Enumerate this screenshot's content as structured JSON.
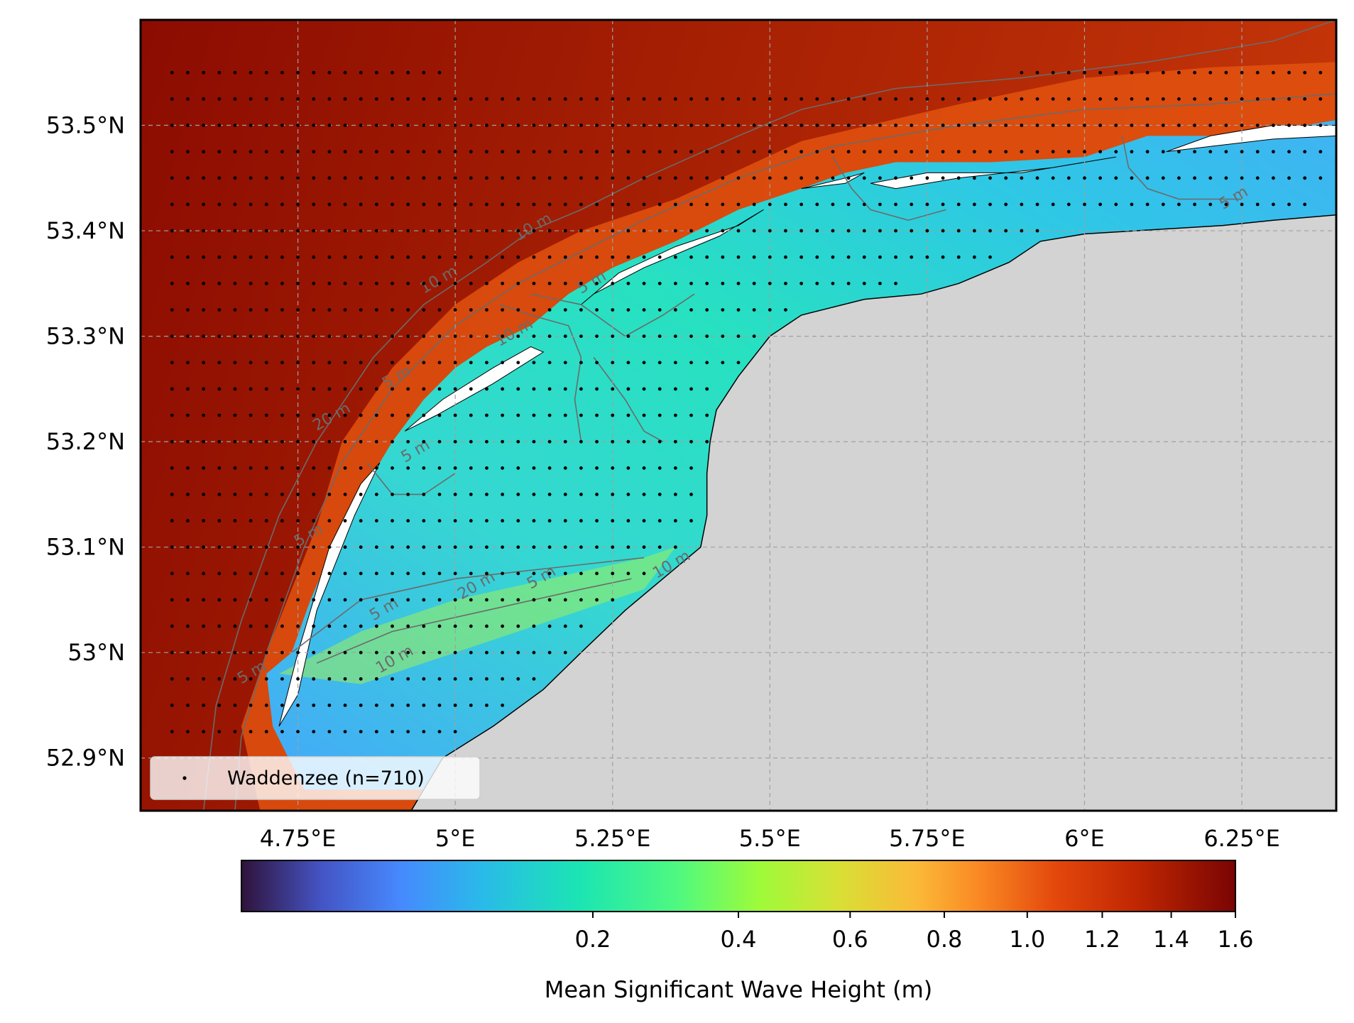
{
  "map": {
    "lat_ticks": [
      "53.5°N",
      "53.4°N",
      "53.3°N",
      "53.2°N",
      "53.1°N",
      "53°N",
      "52.9°N"
    ],
    "lon_ticks": [
      "4.75°E",
      "5°E",
      "5.25°E",
      "5.5°E",
      "5.75°E",
      "6°E",
      "6.25°E"
    ],
    "extent": {
      "lon": [
        4.5,
        6.4
      ],
      "lat": [
        52.85,
        53.6
      ]
    },
    "gridlines": true,
    "contour_labels": [
      "20 m",
      "10 m",
      "10 m",
      "5 m",
      "5 m",
      "5 m",
      "5 m",
      "5 m",
      "5 m",
      "10 m",
      "10 m",
      "20 m",
      "5 m",
      "10 m",
      "5 m"
    ],
    "colors": {
      "land": "#d3d3d3",
      "offshore": "#a51f03",
      "contour": "#6b6b6b",
      "gridline": "#a0a0a0"
    }
  },
  "legend": {
    "entry": "Waddenzee (n=710)",
    "marker": "black dot",
    "placement": "lower-left"
  },
  "colorbar": {
    "label": "Mean Significant Wave Height (m)",
    "ticks": [
      "0.2",
      "0.4",
      "0.6",
      "0.8",
      "1.0",
      "1.2",
      "1.4",
      "1.6"
    ],
    "tick_values": [
      0.2,
      0.4,
      0.6,
      0.8,
      1.0,
      1.2,
      1.4,
      1.6
    ],
    "colormap": "turbo",
    "scale": "nonlinear"
  },
  "chart_data": {
    "type": "heatmap",
    "variable": "Mean Significant Wave Height (m)",
    "value_range": [
      0.0,
      1.6
    ],
    "points_series": {
      "name": "Waddenzee (n=710)",
      "count": 710
    },
    "approx_values": {
      "open_north_sea": 1.55,
      "coastal_fringe": 0.9,
      "wadden_interior": 0.25,
      "tidal_channels": 0.45
    }
  }
}
